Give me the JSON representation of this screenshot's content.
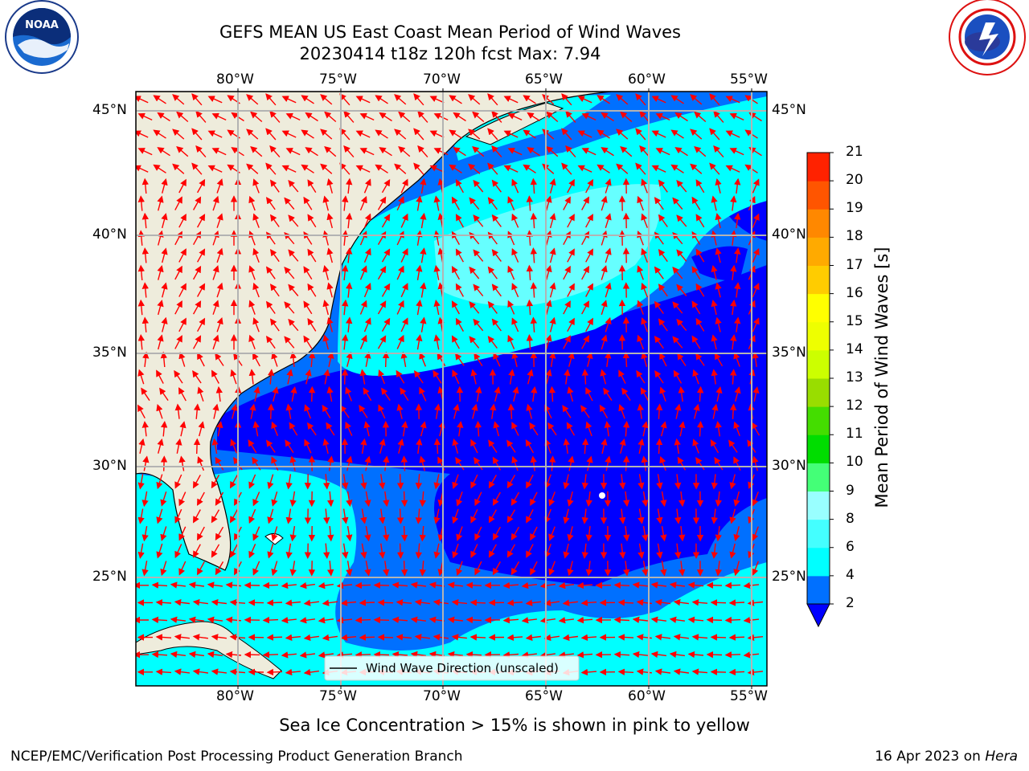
{
  "title": {
    "line1": "GEFS MEAN US East Coast Mean Period of Wind Waves",
    "line2": "20230414 t18z 120h fcst   Max: 7.94"
  },
  "logos": {
    "left": {
      "icon": "noaa-logo",
      "text": "NOAA"
    },
    "right": {
      "icon": "nws-logo",
      "text": "NATIONAL WEATHER SERVICE"
    }
  },
  "map": {
    "lon_labels": [
      "80°W",
      "75°W",
      "70°W",
      "65°W",
      "60°W",
      "55°W"
    ],
    "lat_labels": [
      "45°N",
      "40°N",
      "35°N",
      "30°N",
      "25°N"
    ],
    "lon_range": [
      -85,
      -54
    ],
    "lat_range": [
      20.5,
      46
    ],
    "legend_label": "Wind Wave Direction (unscaled)",
    "colors": {
      "land": "#eeecdc",
      "band_0_2": "#0000ff",
      "band_2_4": "#0070ff",
      "band_4_6": "#00ffff",
      "band_6_8": "#66ffff",
      "arrow": "#ff0000",
      "grid": "#b3b3b3"
    }
  },
  "colorbar": {
    "label": "Mean Period of Wind Waves [s]",
    "ticks": [
      "2",
      "4",
      "6",
      "8",
      "9",
      "10",
      "11",
      "12",
      "13",
      "14",
      "15",
      "16",
      "17",
      "18",
      "19",
      "20",
      "21"
    ],
    "colors": [
      "#0070ff",
      "#00ffff",
      "#44ffff",
      "#99ffff",
      "#44ff77",
      "#00dd00",
      "#44dd00",
      "#99dd00",
      "#ccff00",
      "#eeff00",
      "#ffff00",
      "#ffcc00",
      "#ffaa00",
      "#ff8800",
      "#ff5500",
      "#ff2200",
      "#ff0000"
    ],
    "extend_color": "#0000ff"
  },
  "caption": "Sea Ice Concentration > 15% is shown in pink to yellow",
  "footer": {
    "left": "NCEP/EMC/Verification Post Processing Product Generation Branch",
    "date": "16 Apr 2023 on",
    "machine": "Hera"
  }
}
